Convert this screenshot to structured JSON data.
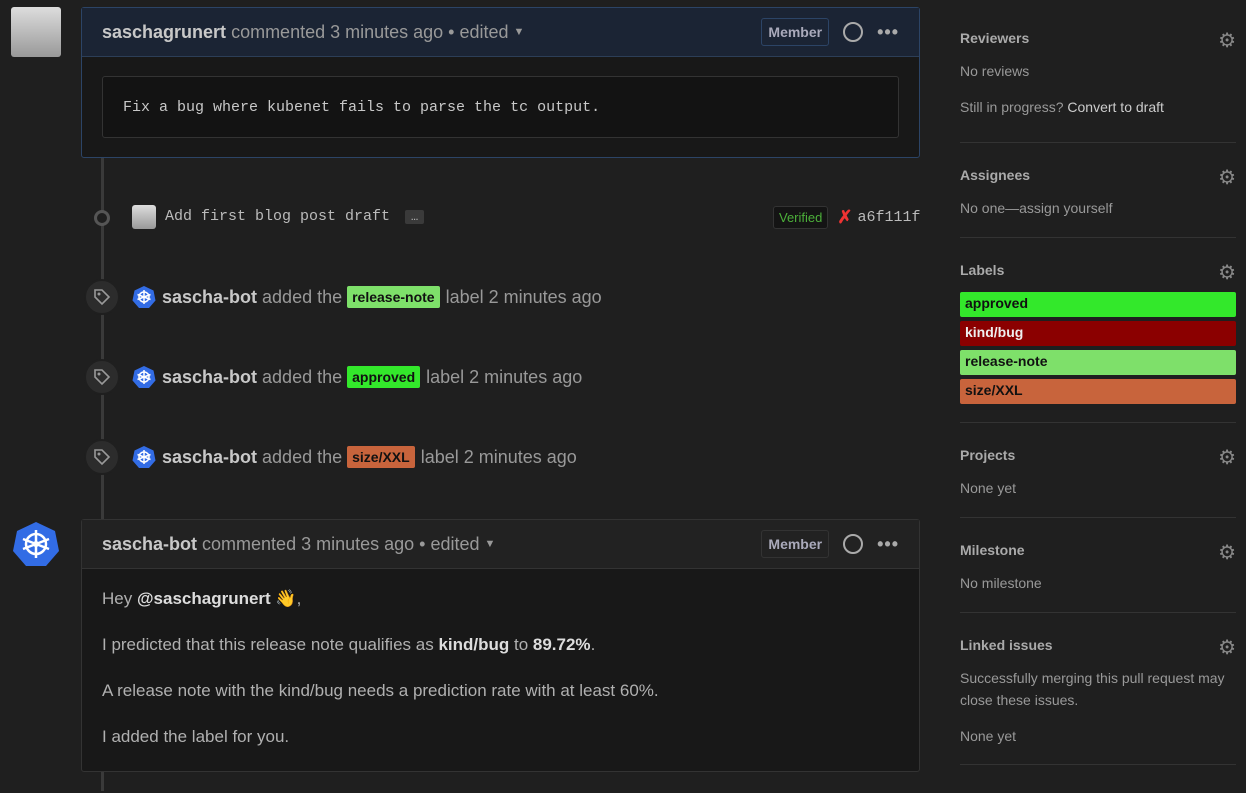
{
  "comment1": {
    "author": "saschagrunert",
    "meta": "commented 3 minutes ago • edited",
    "badge": "Member",
    "body": "Fix a bug where kubenet fails to parse the tc output."
  },
  "commit": {
    "message": "Add first blog post draft",
    "more": "…",
    "verified": "Verified",
    "status": "failed",
    "sha": "a6f111f"
  },
  "events": [
    {
      "actor": "sascha-bot",
      "pre": "added the",
      "label": "release-note",
      "color": "#7ee06a",
      "post": "label 2 minutes ago"
    },
    {
      "actor": "sascha-bot",
      "pre": "added the",
      "label": "approved",
      "color": "#33e82b",
      "post": "label 2 minutes ago"
    },
    {
      "actor": "sascha-bot",
      "pre": "added the",
      "label": "size/XXL",
      "color": "#c8643c",
      "post": "label 2 minutes ago"
    }
  ],
  "comment2": {
    "author": "sascha-bot",
    "meta": "commented 3 minutes ago • edited",
    "badge": "Member",
    "p1a": "Hey ",
    "mention": "@saschagrunert",
    "p1b": " 👋,",
    "p2a": "I predicted that this release note qualifies as ",
    "p2b": "kind/bug",
    "p2c": " to ",
    "p2d": "89.72%",
    "p2e": ".",
    "p3": "A release note with the kind/bug needs a prediction rate with at least 60%.",
    "p4": "I added the label for you."
  },
  "sidebar": {
    "reviewers": {
      "title": "Reviewers",
      "text": "No reviews",
      "hint": "Still in progress? ",
      "link": "Convert to draft"
    },
    "assignees": {
      "title": "Assignees",
      "text": "No one—assign yourself"
    },
    "labels": {
      "title": "Labels",
      "items": [
        {
          "name": "approved",
          "color": "#33e82b",
          "text": "#111"
        },
        {
          "name": "kind/bug",
          "color": "#8b0000",
          "text": "#eee"
        },
        {
          "name": "release-note",
          "color": "#7ee06a",
          "text": "#111"
        },
        {
          "name": "size/XXL",
          "color": "#c8643c",
          "text": "#111"
        }
      ]
    },
    "projects": {
      "title": "Projects",
      "text": "None yet"
    },
    "milestone": {
      "title": "Milestone",
      "text": "No milestone"
    },
    "linked": {
      "title": "Linked issues",
      "text": "Successfully merging this pull request may close these issues.",
      "none": "None yet"
    }
  }
}
